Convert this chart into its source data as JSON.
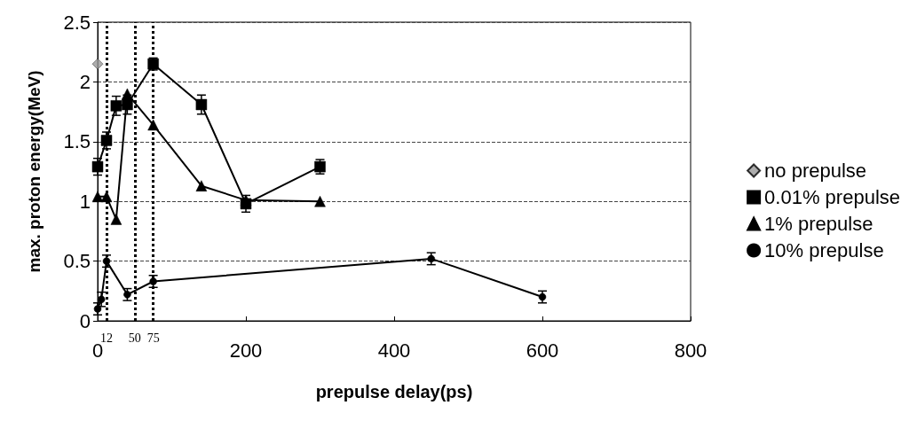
{
  "chart_data": {
    "type": "line",
    "xlabel": "prepulse delay(ps)",
    "ylabel": "max. proton energy(MeV)",
    "xlim": [
      0,
      800
    ],
    "xticks": [
      0,
      200,
      400,
      600,
      800
    ],
    "ylim": [
      0,
      2.5
    ],
    "yticks": [
      0,
      0.5,
      1,
      1.5,
      2,
      2.5
    ],
    "grid": "y",
    "legend": "right",
    "series": [
      {
        "name": "no prepulse",
        "type": "scatter",
        "marker": "diamond",
        "color": "#999999",
        "x": [
          0
        ],
        "values": [
          2.15
        ]
      },
      {
        "name": "0.01% prepulse",
        "marker": "square",
        "color": "#000000",
        "x": [
          0,
          12,
          25,
          40,
          75,
          140,
          200,
          300
        ],
        "values": [
          1.29,
          1.51,
          1.8,
          1.81,
          2.15,
          1.81,
          0.98,
          1.29
        ],
        "errors": [
          0.07,
          0.07,
          0.08,
          0.08,
          0.05,
          0.08,
          0.07,
          0.06
        ]
      },
      {
        "name": "1% prepulse",
        "marker": "triangle",
        "color": "#000000",
        "x": [
          0,
          12,
          25,
          40,
          75,
          140,
          200,
          300
        ],
        "values": [
          1.04,
          1.04,
          0.85,
          1.9,
          1.64,
          1.13,
          1.01,
          1.0
        ]
      },
      {
        "name": "10% prepulse",
        "marker": "circle",
        "color": "#000000",
        "x": [
          0,
          5,
          12,
          40,
          75,
          450,
          600
        ],
        "values": [
          0.1,
          0.18,
          0.5,
          0.22,
          0.33,
          0.52,
          0.2
        ],
        "errors": [
          0.05,
          0.06,
          0.05,
          0.05,
          0.05,
          0.05,
          0.05
        ]
      }
    ],
    "ref_lines": [
      {
        "axis": "x",
        "value": 12,
        "label": "12",
        "line_style": "dotted"
      },
      {
        "axis": "x",
        "value": 50,
        "label": "50",
        "line_style": "dotted"
      },
      {
        "axis": "x",
        "value": 75,
        "label": "75",
        "line_style": "dotted"
      }
    ]
  }
}
